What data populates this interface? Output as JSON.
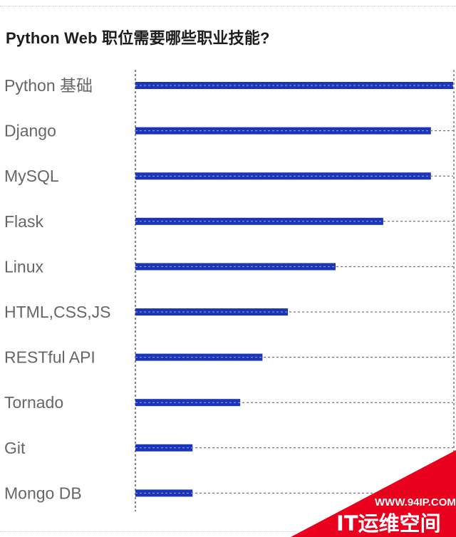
{
  "chart_data": {
    "type": "bar",
    "orientation": "horizontal",
    "title": "Python Web 职位需要哪些职业技能?",
    "categories": [
      "Python 基础",
      "Django",
      "MySQL",
      "Flask",
      "Linux",
      "HTML,CSS,JS",
      "RESTful API",
      "Tornado",
      "Git",
      "Mongo DB"
    ],
    "values": [
      100,
      93,
      93,
      78,
      63,
      48,
      40,
      33,
      18,
      18
    ],
    "xlim": [
      0,
      100
    ],
    "xlabel": "",
    "ylabel": "",
    "grid": "dashed horizontal guide per bar",
    "bar_color": "#1a35b8"
  },
  "watermark": {
    "url": "WWW.94IP.COM",
    "brand": "IT运维空间",
    "color": "#e8001c"
  }
}
